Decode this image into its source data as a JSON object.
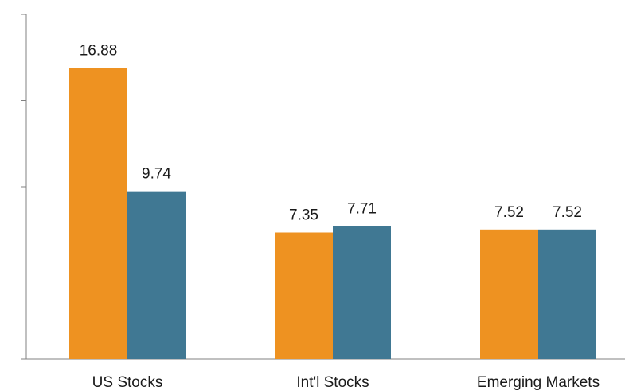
{
  "colors": {
    "series_1": "#EE9221",
    "series_2": "#407893",
    "axis": "#808080"
  },
  "chart_data": {
    "type": "bar",
    "title": "",
    "xlabel": "",
    "ylabel": "",
    "categories": [
      "US Stocks",
      "Int'l Stocks",
      "Emerging Markets"
    ],
    "series": [
      {
        "values": [
          16.88,
          7.35,
          7.52
        ]
      },
      {
        "values": [
          9.74,
          7.71,
          7.52
        ]
      }
    ],
    "value_labels": [
      [
        "16.88",
        "7.35",
        "7.52"
      ],
      [
        "9.74",
        "7.71",
        "7.52"
      ]
    ],
    "ylim": [
      0,
      20
    ],
    "y_tick_count": 4,
    "y_tick_labels_shown": false,
    "grid": false,
    "legend": "none"
  }
}
